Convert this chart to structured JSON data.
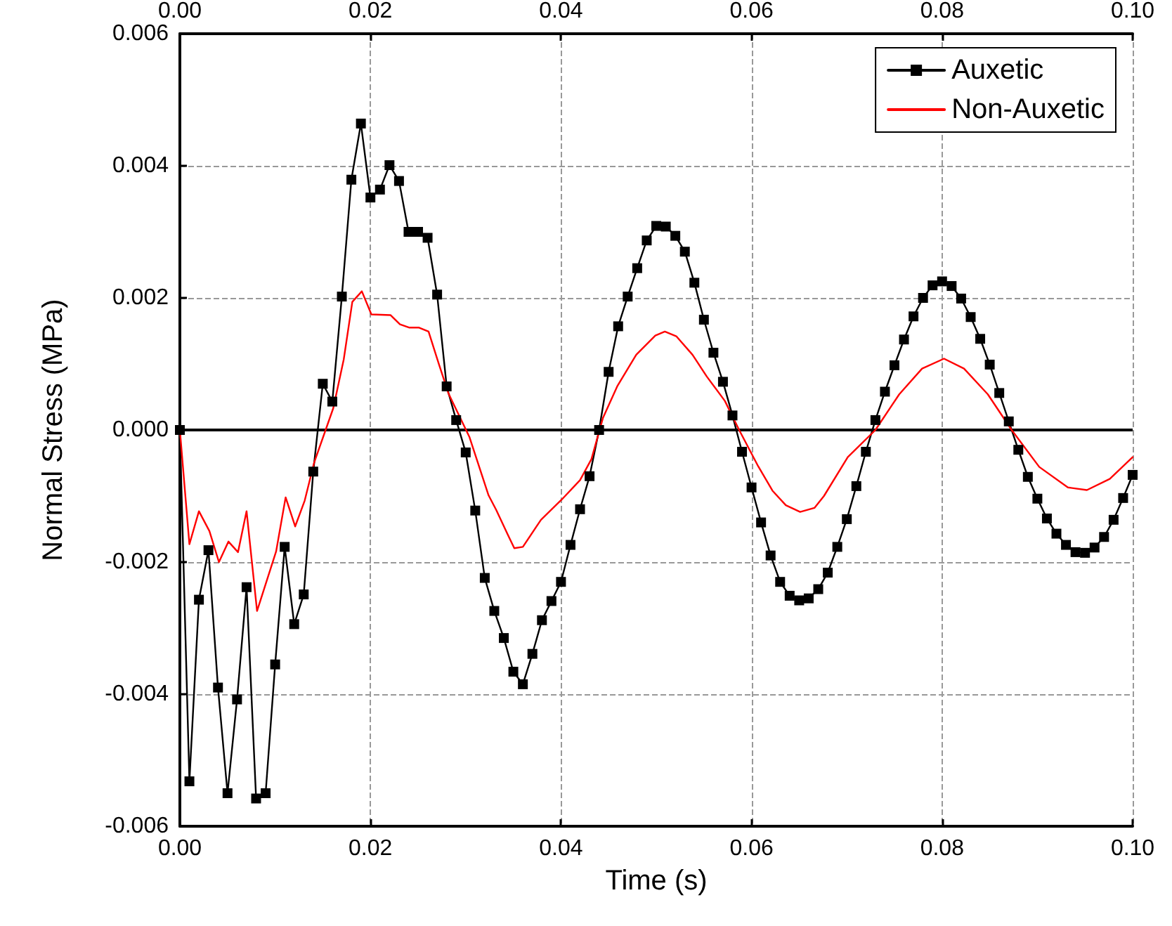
{
  "chart_data": {
    "type": "line",
    "xlabel": "Time (s)",
    "ylabel": "Normal Stress (MPa)",
    "xlim": [
      0,
      0.1
    ],
    "xticks": [
      {
        "value": 0,
        "label": "0.00"
      },
      {
        "value": 0.02,
        "label": "0.02"
      },
      {
        "value": 0.04,
        "label": "0.04"
      },
      {
        "value": 0.06,
        "label": "0.06"
      },
      {
        "value": 0.08,
        "label": "0.08"
      },
      {
        "value": 0.1,
        "label": "0.10"
      }
    ],
    "x2lim": [
      0,
      0.1
    ],
    "x2ticks": [
      {
        "value": 0,
        "label": "0.00"
      },
      {
        "value": 0.02,
        "label": "0.02"
      },
      {
        "value": 0.04,
        "label": "0.04"
      },
      {
        "value": 0.06,
        "label": "0.06"
      },
      {
        "value": 0.08,
        "label": "0.08"
      },
      {
        "value": 0.1,
        "label": "0.10"
      }
    ],
    "ylim": [
      -0.006,
      0.006
    ],
    "yticks": [
      -0.006,
      -0.004,
      -0.002,
      {
        "value": 0,
        "label": "0.000"
      },
      0.002,
      0.004,
      0.006
    ],
    "grid": true,
    "legend": "top right",
    "line_style": "solid",
    "ref_lines": [
      {
        "axis": "y",
        "value": 0,
        "color": "#000000"
      }
    ],
    "series": [
      {
        "name": "Auxetic",
        "color": "#000000",
        "marker": "square",
        "x": [
          0,
          0.001,
          0.002,
          0.003,
          0.004,
          0.005,
          0.006,
          0.007,
          0.008,
          0.009,
          0.01,
          0.011,
          0.012,
          0.013,
          0.014,
          0.015,
          0.016,
          0.017,
          0.018,
          0.019,
          0.02,
          0.021,
          0.022,
          0.023,
          0.024,
          0.025,
          0.026,
          0.027,
          0.028,
          0.029,
          0.03,
          0.031,
          0.032,
          0.033,
          0.034,
          0.035,
          0.036,
          0.037,
          0.038,
          0.039,
          0.04,
          0.041,
          0.042,
          0.043,
          0.044,
          0.045,
          0.046,
          0.047,
          0.048,
          0.049,
          0.05,
          0.051,
          0.052,
          0.053,
          0.054,
          0.055,
          0.056,
          0.057,
          0.058,
          0.059,
          0.06,
          0.061,
          0.062,
          0.063,
          0.064,
          0.065,
          0.066,
          0.067,
          0.068,
          0.069,
          0.07,
          0.071,
          0.072,
          0.073,
          0.074,
          0.075,
          0.076,
          0.077,
          0.078,
          0.079,
          0.08,
          0.081,
          0.082,
          0.083,
          0.084,
          0.085,
          0.086,
          0.087,
          0.088,
          0.089,
          0.09,
          0.091,
          0.092,
          0.093,
          0.094,
          0.095,
          0.096,
          0.097,
          0.098,
          0.099,
          0.1
        ],
        "values": [
          0,
          -0.00532,
          -0.00257,
          -0.00182,
          -0.0039,
          -0.0055,
          -0.00408,
          -0.00238,
          -0.00558,
          -0.0055,
          -0.00355,
          -0.00177,
          -0.00294,
          -0.00249,
          -0.00063,
          0.0007,
          0.00043,
          0.00202,
          0.00379,
          0.00464,
          0.00352,
          0.00364,
          0.00401,
          0.00377,
          0.003,
          0.003,
          0.00291,
          0.00205,
          0.00066,
          0.00015,
          -0.00034,
          -0.00122,
          -0.00224,
          -0.00274,
          -0.00315,
          -0.00366,
          -0.00385,
          -0.00339,
          -0.00288,
          -0.00259,
          -0.0023,
          -0.00174,
          -0.0012,
          -0.0007,
          0,
          0.00088,
          0.00157,
          0.00202,
          0.00245,
          0.00287,
          0.00309,
          0.00308,
          0.00294,
          0.0027,
          0.00223,
          0.00167,
          0.00117,
          0.00073,
          0.00022,
          -0.00033,
          -0.00087,
          -0.0014,
          -0.0019,
          -0.0023,
          -0.00251,
          -0.00258,
          -0.00255,
          -0.00241,
          -0.00216,
          -0.00177,
          -0.00135,
          -0.00085,
          -0.00033,
          0.00015,
          0.00058,
          0.00098,
          0.00137,
          0.00172,
          0.002,
          0.00219,
          0.00225,
          0.00218,
          0.00199,
          0.00171,
          0.00138,
          0.00099,
          0.00056,
          0.00013,
          -0.0003,
          -0.00071,
          -0.00104,
          -0.00134,
          -0.00157,
          -0.00174,
          -0.00185,
          -0.00186,
          -0.00178,
          -0.00162,
          -0.00136,
          -0.00103,
          -0.00068
        ]
      },
      {
        "name": "Non-Auxetic",
        "color": "#ff0000",
        "marker": "none",
        "x": [
          0,
          0.001,
          0.002,
          0.0031,
          0.0041,
          0.0051,
          0.0061,
          0.007,
          0.0081,
          0.0101,
          0.0111,
          0.0121,
          0.0131,
          0.0141,
          0.0161,
          0.0172,
          0.0181,
          0.0191,
          0.0201,
          0.0221,
          0.0231,
          0.0241,
          0.0251,
          0.0261,
          0.0272,
          0.0282,
          0.0304,
          0.0324,
          0.0332,
          0.0344,
          0.0351,
          0.036,
          0.0379,
          0.0401,
          0.042,
          0.0432,
          0.0444,
          0.0459,
          0.0479,
          0.0499,
          0.0509,
          0.0521,
          0.0538,
          0.0553,
          0.0572,
          0.0587,
          0.0607,
          0.0622,
          0.0636,
          0.0651,
          0.0666,
          0.0676,
          0.0701,
          0.073,
          0.0755,
          0.0779,
          0.0802,
          0.0823,
          0.0848,
          0.0873,
          0.0902,
          0.0932,
          0.0952,
          0.0976,
          0.1
        ],
        "values": [
          0,
          -0.00173,
          -0.00123,
          -0.00153,
          -0.002,
          -0.00169,
          -0.00185,
          -0.00123,
          -0.00274,
          -0.00184,
          -0.00102,
          -0.00146,
          -0.00107,
          -0.00049,
          0.00033,
          0.00107,
          0.00194,
          0.0021,
          0.00175,
          0.00174,
          0.0016,
          0.00155,
          0.00155,
          0.00149,
          0.00099,
          0.00055,
          -0.00011,
          -0.00099,
          -0.00121,
          -0.00158,
          -0.00179,
          -0.00177,
          -0.00136,
          -0.00105,
          -0.00076,
          -0.00044,
          0.00018,
          0.00066,
          0.00114,
          0.00143,
          0.00149,
          0.00142,
          0.00114,
          0.00081,
          0.00044,
          0,
          -0.00055,
          -0.00092,
          -0.00114,
          -0.00124,
          -0.00118,
          -0.001,
          -0.00041,
          0,
          0.00054,
          0.00093,
          0.00108,
          0.00093,
          0.00054,
          0,
          -0.00056,
          -0.00087,
          -0.00091,
          -0.00074,
          -0.00041
        ]
      }
    ]
  }
}
